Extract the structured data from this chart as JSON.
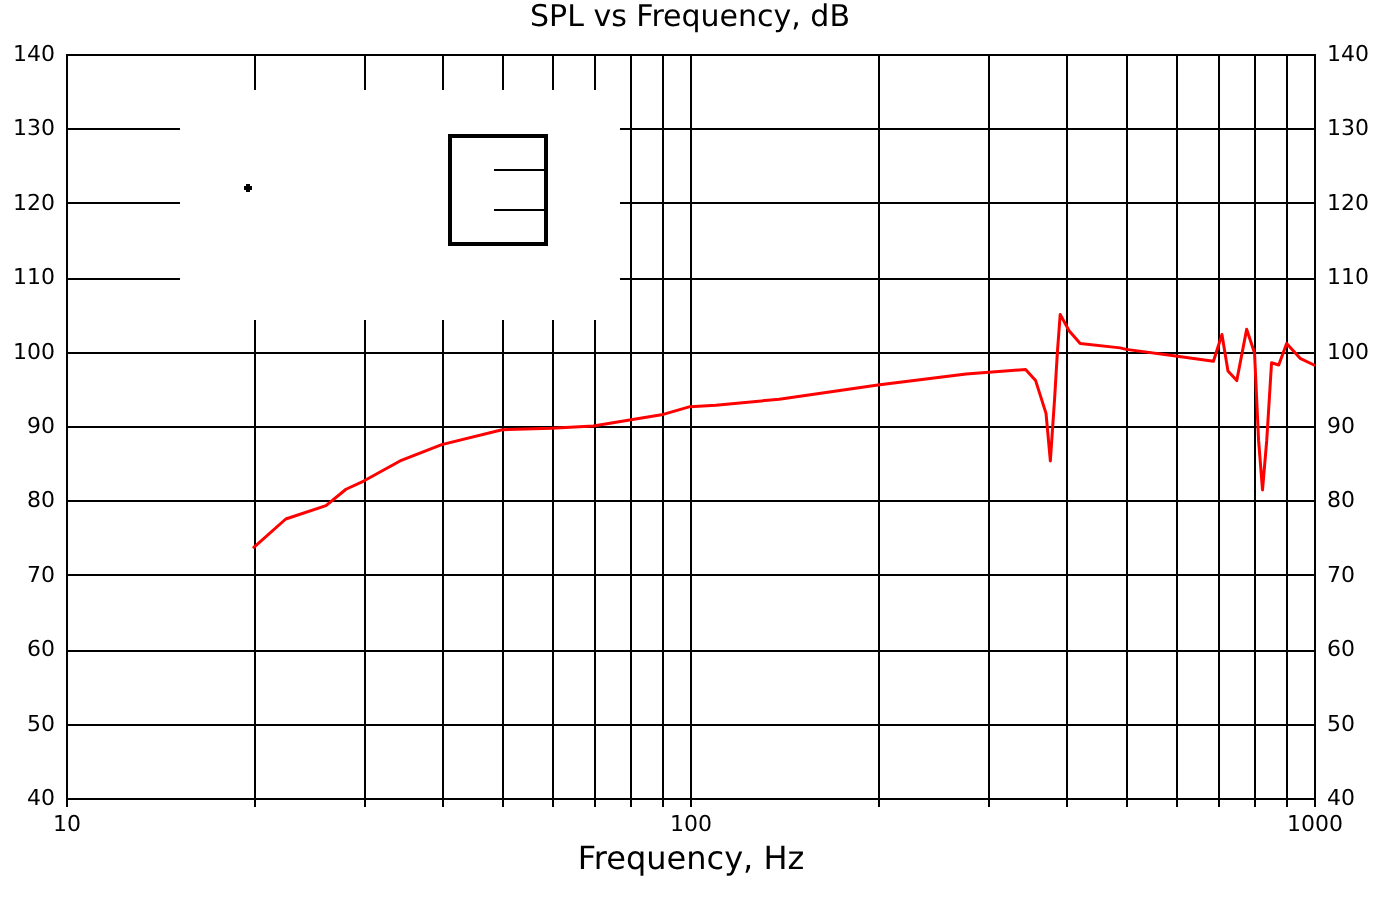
{
  "chart_data": {
    "type": "line",
    "title": "SPL vs Frequency, dB",
    "xlabel": "Frequency, Hz",
    "x": [
      20,
      22.5,
      26.1,
      28.1,
      30,
      34.3,
      40,
      50,
      60,
      70,
      80,
      90,
      100,
      110,
      139,
      200,
      277,
      345,
      358,
      372,
      378,
      384,
      388,
      392,
      405,
      422,
      489,
      500,
      600,
      690,
      712,
      728,
      752,
      780,
      803,
      815,
      827,
      840,
      855,
      878,
      904,
      950,
      1000
    ],
    "series": [
      {
        "color": "#ff0000",
        "values": [
          73.7,
          77.5,
          79.3,
          81.5,
          82.6,
          85.3,
          87.5,
          89.5,
          89.7,
          90,
          90.8,
          91.5,
          92.6,
          92.8,
          93.6,
          95.5,
          97,
          97.6,
          96.1,
          91.7,
          85.3,
          93.7,
          100,
          105,
          102.8,
          101.1,
          100.5,
          100.3,
          99.4,
          98.7,
          102.3,
          97.4,
          96.1,
          103,
          99.8,
          88.1,
          81.4,
          88.1,
          98.5,
          98.2,
          101.1,
          99.1,
          98.2
        ]
      }
    ],
    "log": "x",
    "xlim": [
      10,
      1000
    ],
    "xticks": [
      10,
      {
        "value": 20,
        "label": null
      },
      {
        "value": 30,
        "label": null
      },
      {
        "value": 40,
        "label": null
      },
      {
        "value": 50,
        "label": null
      },
      {
        "value": 60,
        "label": null
      },
      {
        "value": 70,
        "label": null
      },
      {
        "value": 80,
        "label": null
      },
      {
        "value": 90,
        "label": null
      },
      100,
      {
        "value": 200,
        "label": null
      },
      {
        "value": 300,
        "label": null
      },
      {
        "value": 400,
        "label": null
      },
      {
        "value": 500,
        "label": null
      },
      {
        "value": 600,
        "label": null
      },
      {
        "value": 700,
        "label": null
      },
      {
        "value": 800,
        "label": null
      },
      {
        "value": 900,
        "label": null
      },
      1000
    ],
    "ylim": [
      40,
      140
    ],
    "yticks": [
      40,
      50,
      60,
      70,
      80,
      90,
      100,
      110,
      120,
      130,
      140
    ],
    "y2lim": [
      40,
      140
    ],
    "y2ticks": [
      40,
      50,
      60,
      70,
      80,
      90,
      100,
      110,
      120,
      130,
      140
    ],
    "grid": true,
    "marker": "none",
    "line_style": "solid"
  }
}
